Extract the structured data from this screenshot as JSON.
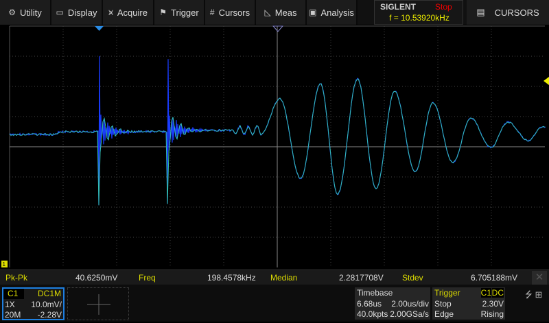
{
  "menu": [
    {
      "label": "Utility",
      "icon": "gear-icon",
      "glyph": "⚙"
    },
    {
      "label": "Display",
      "icon": "monitor-icon",
      "glyph": "▭"
    },
    {
      "label": "Acquire",
      "icon": "acquire-icon",
      "glyph": "⩙"
    },
    {
      "label": "Trigger",
      "icon": "flag-icon",
      "glyph": "⚑"
    },
    {
      "label": "Cursors",
      "icon": "grid-icon",
      "glyph": "#"
    },
    {
      "label": "Meas",
      "icon": "ruler-triangle-icon",
      "glyph": "◺"
    },
    {
      "label": "Analysis",
      "icon": "analysis-icon",
      "glyph": "▣"
    }
  ],
  "brand": {
    "logo": "SIGLENT",
    "run_state": "Stop",
    "frequency": "f = 10.53920kHz"
  },
  "cursors_button": {
    "label": "CURSORS",
    "icon": "cursor-list-icon",
    "glyph": "▤"
  },
  "channel_marker": "1",
  "measurements": [
    {
      "name": "Pk-Pk",
      "value": "40.6250mV"
    },
    {
      "name": "Freq",
      "value": "198.4578kHz"
    },
    {
      "name": "Median",
      "value": "2.2817708V"
    },
    {
      "name": "Stdev",
      "value": "6.705188mV"
    }
  ],
  "channel": {
    "name": "C1",
    "coupling": "DC1M",
    "probe": "1X",
    "scale": "10.0mV/",
    "bandwidth": "20M",
    "offset": "-2.28V"
  },
  "timebase": {
    "title": "Timebase",
    "delay": "6.68us",
    "scale": "2.00us/div",
    "points": "40.0kpts",
    "sample_rate": "2.00GSa/s"
  },
  "trigger": {
    "title": "Trigger",
    "source": "C1",
    "coupling": "DC",
    "state": "Stop",
    "level": "2.30V",
    "type": "Edge",
    "slope": "Rising"
  },
  "colors": {
    "accent": "#1e7fe0",
    "label_yellow": "#dddd00",
    "stop_red": "#ee0000",
    "trace_blue": "#1a3cff",
    "trace_teal": "#33c0b0"
  }
}
